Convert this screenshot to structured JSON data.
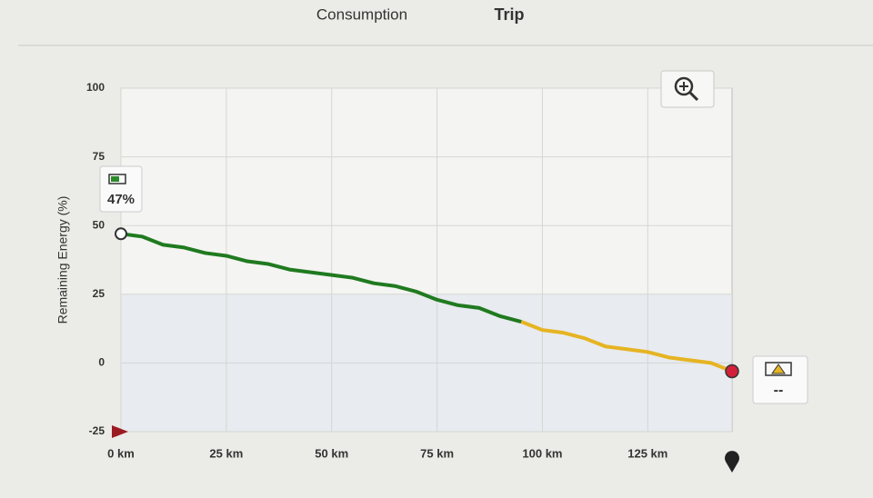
{
  "tabs": [
    "Consumption",
    "Trip"
  ],
  "chart_data": {
    "type": "line",
    "y_label": "Remaining Energy (%)",
    "x": [
      0,
      5,
      10,
      15,
      20,
      25,
      30,
      35,
      40,
      45,
      50,
      55,
      60,
      65,
      70,
      75,
      80,
      85,
      90,
      95,
      100,
      105,
      110,
      115,
      120,
      125,
      130,
      135,
      140,
      145
    ],
    "series": [
      {
        "color": "#1f7a1f",
        "values": [
          47,
          46,
          43,
          42,
          40,
          39,
          37,
          36,
          34,
          33,
          32,
          31,
          29,
          28,
          26,
          23,
          21,
          20,
          17,
          15,
          null,
          null,
          null,
          null,
          null,
          null,
          null,
          null,
          null,
          null
        ]
      },
      {
        "color": "#e6b422",
        "values": [
          null,
          null,
          null,
          null,
          null,
          null,
          null,
          null,
          null,
          null,
          null,
          null,
          null,
          null,
          null,
          null,
          null,
          null,
          null,
          15,
          12,
          11,
          9,
          6,
          5,
          4,
          2,
          1,
          0,
          -3
        ]
      }
    ],
    "xlim": [
      0,
      145
    ],
    "ylim": [
      -25,
      100
    ],
    "yticks": [
      -25,
      0,
      25,
      50,
      75,
      100
    ],
    "xticks": [
      {
        "value": 0,
        "label": "0 km"
      },
      {
        "value": 25,
        "label": "25 km"
      },
      {
        "value": 50,
        "label": "50 km"
      },
      {
        "value": 75,
        "label": "75 km"
      },
      {
        "value": 100,
        "label": "100 km"
      },
      {
        "value": 125,
        "label": "125 km"
      }
    ],
    "grid": true,
    "start_label": "47%",
    "end_label": "--"
  }
}
